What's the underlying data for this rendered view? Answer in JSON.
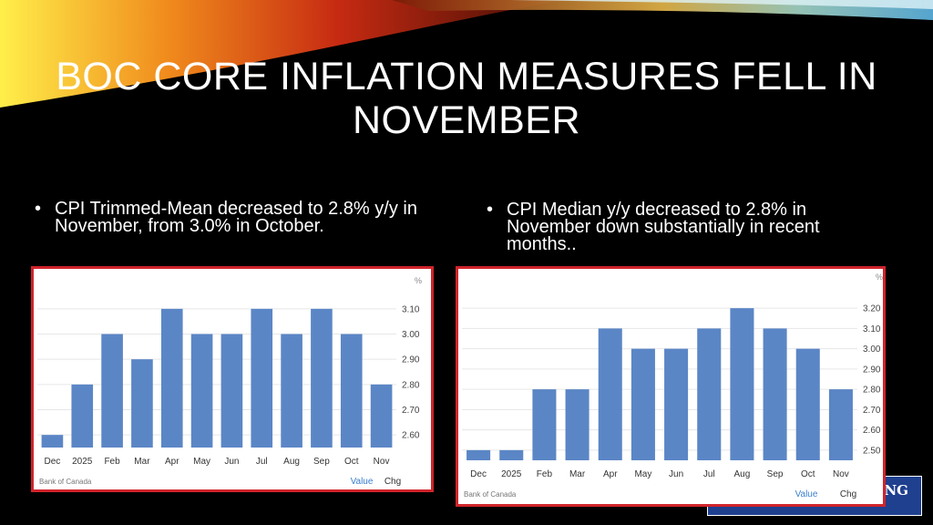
{
  "slide": {
    "title": "BOC CORE INFLATION MEASURES FELL IN NOVEMBER",
    "bullet_char": "•",
    "bullets": [
      "CPI Trimmed-Mean decreased to 2.8% y/y in November, from 3.0% in October.",
      "CPI Median y/y decreased to 2.8% in November down substantially in recent months.."
    ],
    "banner_text": "NG"
  },
  "colors": {
    "bar": "#5b86c6",
    "frame": "#d0242b",
    "tab_active": "#3a7fd0",
    "gridline": "#e6e6e6"
  },
  "chart_data": [
    {
      "type": "bar",
      "categories": [
        "Dec",
        "2025",
        "Feb",
        "Mar",
        "Apr",
        "May",
        "Jun",
        "Jul",
        "Aug",
        "Sep",
        "Oct",
        "Nov"
      ],
      "values": [
        2.6,
        2.8,
        3.0,
        2.9,
        3.1,
        3.0,
        3.0,
        3.1,
        3.0,
        3.1,
        3.0,
        2.8
      ],
      "ylim": [
        2.55,
        3.15
      ],
      "yticks": [
        "2.60",
        "2.70",
        "2.80",
        "2.90",
        "3.00",
        "3.10"
      ],
      "unit": "%",
      "source": "Bank of Canada",
      "tabs": [
        "Value",
        "Chg"
      ],
      "grid": true
    },
    {
      "type": "bar",
      "categories": [
        "Dec",
        "2025",
        "Feb",
        "Mar",
        "Apr",
        "May",
        "Jun",
        "Jul",
        "Aug",
        "Sep",
        "Oct",
        "Nov"
      ],
      "values": [
        2.5,
        2.5,
        2.8,
        2.8,
        3.1,
        3.0,
        3.0,
        3.1,
        3.2,
        3.1,
        3.0,
        2.8
      ],
      "ylim": [
        2.45,
        3.25
      ],
      "yticks": [
        "2.50",
        "2.60",
        "2.70",
        "2.80",
        "2.90",
        "3.00",
        "3.10",
        "3.20"
      ],
      "unit": "%",
      "source": "Bank of Canada",
      "tabs": [
        "Value",
        "Chg"
      ],
      "grid": true
    }
  ]
}
